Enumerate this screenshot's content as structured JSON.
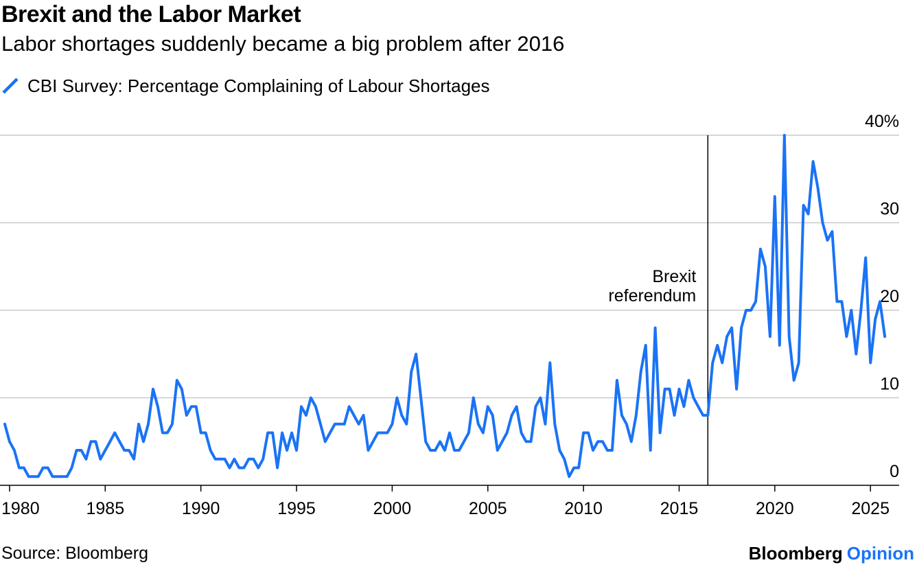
{
  "colors": {
    "series": "#1a73f5",
    "grid": "#c8c8c8",
    "axis": "#000000",
    "opinion": "#1a73f5"
  },
  "brand": {
    "name": "Bloomberg",
    "section": "Opinion"
  },
  "source": "Source: Bloomberg",
  "chart_data": {
    "type": "line",
    "title": "Brexit and the Labor Market",
    "subtitle": "Labor shortages suddenly became a big problem after 2016",
    "legend": [
      "CBI Survey: Percentage Complaining of Labour Shortages"
    ],
    "xlim": [
      1979.5,
      2026.5
    ],
    "ylim": [
      0,
      40
    ],
    "x_ticks": [
      1980,
      1985,
      1990,
      1995,
      2000,
      2005,
      2010,
      2015,
      2020,
      2025
    ],
    "x_tick_labels": [
      "1980",
      "1985",
      "1990",
      "1995",
      "2000",
      "2005",
      "2010",
      "2015",
      "2020",
      "2025"
    ],
    "y_ticks": [
      0,
      10,
      20,
      30,
      40
    ],
    "y_tick_labels": [
      "0",
      "10",
      "20",
      "30",
      "40%"
    ],
    "grid": true,
    "annotations": [
      {
        "x": 2016.5,
        "lines": [
          "Brexit",
          "referendum"
        ]
      }
    ],
    "series": [
      {
        "name": "CBI Survey: Percentage Complaining of Labour Shortages",
        "x": [
          1979.75,
          1980.0,
          1980.25,
          1980.5,
          1980.75,
          1981.0,
          1981.25,
          1981.5,
          1981.75,
          1982.0,
          1982.25,
          1982.5,
          1982.75,
          1983.0,
          1983.25,
          1983.5,
          1983.75,
          1984.0,
          1984.25,
          1984.5,
          1984.75,
          1985.0,
          1985.25,
          1985.5,
          1985.75,
          1986.0,
          1986.25,
          1986.5,
          1986.75,
          1987.0,
          1987.25,
          1987.5,
          1987.75,
          1988.0,
          1988.25,
          1988.5,
          1988.75,
          1989.0,
          1989.25,
          1989.5,
          1989.75,
          1990.0,
          1990.25,
          1990.5,
          1990.75,
          1991.0,
          1991.25,
          1991.5,
          1991.75,
          1992.0,
          1992.25,
          1992.5,
          1992.75,
          1993.0,
          1993.25,
          1993.5,
          1993.75,
          1994.0,
          1994.25,
          1994.5,
          1994.75,
          1995.0,
          1995.25,
          1995.5,
          1995.75,
          1996.0,
          1996.25,
          1996.5,
          1996.75,
          1997.0,
          1997.25,
          1997.5,
          1997.75,
          1998.0,
          1998.25,
          1998.5,
          1998.75,
          1999.0,
          1999.25,
          1999.5,
          1999.75,
          2000.0,
          2000.25,
          2000.5,
          2000.75,
          2001.0,
          2001.25,
          2001.5,
          2001.75,
          2002.0,
          2002.25,
          2002.5,
          2002.75,
          2003.0,
          2003.25,
          2003.5,
          2003.75,
          2004.0,
          2004.25,
          2004.5,
          2004.75,
          2005.0,
          2005.25,
          2005.5,
          2005.75,
          2006.0,
          2006.25,
          2006.5,
          2006.75,
          2007.0,
          2007.25,
          2007.5,
          2007.75,
          2008.0,
          2008.25,
          2008.5,
          2008.75,
          2009.0,
          2009.25,
          2009.5,
          2009.75,
          2010.0,
          2010.25,
          2010.5,
          2010.75,
          2011.0,
          2011.25,
          2011.5,
          2011.75,
          2012.0,
          2012.25,
          2012.5,
          2012.75,
          2013.0,
          2013.25,
          2013.5,
          2013.75,
          2014.0,
          2014.25,
          2014.5,
          2014.75,
          2015.0,
          2015.25,
          2015.5,
          2015.75,
          2016.0,
          2016.25,
          2016.5,
          2016.75,
          2017.0,
          2017.25,
          2017.5,
          2017.75,
          2018.0,
          2018.25,
          2018.5,
          2018.75,
          2019.0,
          2019.25,
          2019.5,
          2019.75,
          2020.0,
          2020.25,
          2020.5,
          2020.75,
          2021.0,
          2021.25,
          2021.5,
          2021.75,
          2022.0,
          2022.25,
          2022.5,
          2022.75,
          2023.0,
          2023.25,
          2023.5,
          2023.75,
          2024.0,
          2024.25,
          2024.5,
          2024.75,
          2025.0,
          2025.25,
          2025.5,
          2025.75
        ],
        "values": [
          7,
          5,
          4,
          2,
          2,
          1,
          1,
          1,
          2,
          2,
          1,
          1,
          1,
          1,
          2,
          4,
          4,
          3,
          5,
          5,
          3,
          4,
          5,
          6,
          5,
          4,
          4,
          3,
          7,
          5,
          7,
          11,
          9,
          6,
          6,
          7,
          12,
          11,
          8,
          9,
          9,
          6,
          6,
          4,
          3,
          3,
          3,
          2,
          3,
          2,
          2,
          3,
          3,
          2,
          3,
          6,
          6,
          2,
          6,
          4,
          6,
          4,
          9,
          8,
          10,
          9,
          7,
          5,
          6,
          7,
          7,
          7,
          9,
          8,
          7,
          8,
          4,
          5,
          6,
          6,
          6,
          7,
          10,
          8,
          7,
          13,
          15,
          10,
          5,
          4,
          4,
          5,
          4,
          6,
          4,
          4,
          5,
          6,
          10,
          7,
          6,
          9,
          8,
          4,
          5,
          6,
          8,
          9,
          6,
          5,
          5,
          9,
          10,
          7,
          14,
          7,
          4,
          3,
          1,
          2,
          2,
          6,
          6,
          4,
          5,
          5,
          4,
          4,
          12,
          8,
          7,
          5,
          8,
          13,
          16,
          4,
          18,
          6,
          11,
          11,
          8,
          11,
          9,
          12,
          10,
          9,
          8,
          8,
          14,
          16,
          14,
          17,
          18,
          11,
          18,
          20,
          20,
          21,
          27,
          25,
          17,
          33,
          16,
          40,
          17,
          12,
          14,
          32,
          31,
          37,
          34,
          30,
          28,
          29,
          21,
          21,
          17,
          20,
          15,
          20,
          26,
          14,
          19,
          21,
          17
        ]
      }
    ]
  }
}
